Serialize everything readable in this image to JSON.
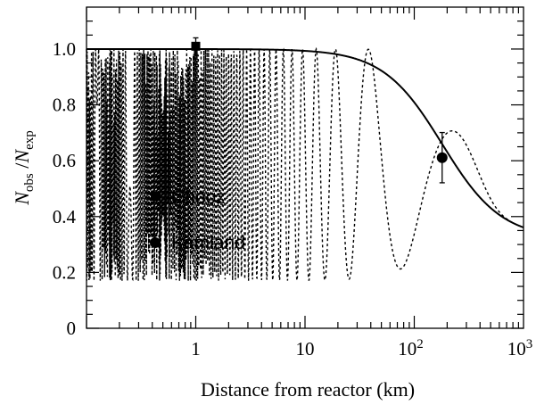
{
  "chart_data": {
    "type": "line",
    "xscale": "log",
    "xlim": [
      0.1,
      1000
    ],
    "ylim": [
      0,
      1.15
    ],
    "grid": false,
    "xlabel": "Distance from reactor  (km)",
    "ylabel": {
      "main": "N",
      "sub_obs": "obs",
      "slash": " /",
      "main2": "N",
      "sub_exp": "exp"
    },
    "x_ticks": [
      {
        "value": 1,
        "label": "1"
      },
      {
        "value": 10,
        "label": "10"
      },
      {
        "value": 100,
        "base": "10",
        "exp": "2"
      },
      {
        "value": 1000,
        "base": "10",
        "exp": "3"
      }
    ],
    "y_ticks": [
      {
        "value": 0,
        "label": "0"
      },
      {
        "value": 0.2,
        "label": "0.2"
      },
      {
        "value": 0.4,
        "label": "0.4"
      },
      {
        "value": 0.6,
        "label": "0.6"
      },
      {
        "value": 0.8,
        "label": "0.8"
      },
      {
        "value": 1.0,
        "label": "1.0"
      }
    ],
    "series": [
      {
        "style": "solid",
        "kind": "averaged",
        "asymptote": 0.32,
        "L_half": 180,
        "power": 1.6
      },
      {
        "style": "dashed",
        "kind": "oscillation",
        "amplitude": 0.83,
        "L_osc": 76,
        "damp_L": 300
      }
    ],
    "points": [
      {
        "name": "Chooz",
        "marker": "square",
        "x": 1.0,
        "y": 1.01,
        "err": 0.03
      },
      {
        "name": "Kamland",
        "marker": "circle",
        "x": 180,
        "y": 0.611,
        "err": 0.09
      }
    ],
    "legend": [
      {
        "label": "Chooz",
        "marker": "square"
      },
      {
        "label": "Kamland",
        "marker": "circle"
      }
    ]
  }
}
